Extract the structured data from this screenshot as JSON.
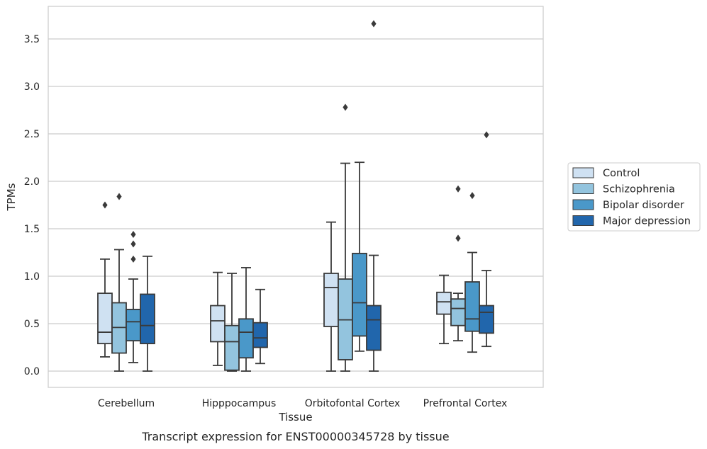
{
  "caption": "Transcript expression for ENST00000345728 by tissue",
  "chart_data": {
    "type": "box",
    "xlabel": "Tissue",
    "ylabel": "TPMs",
    "ylim": [
      -0.18,
      3.86
    ],
    "yticks": [
      0.0,
      0.5,
      1.0,
      1.5,
      2.0,
      2.5,
      3.0,
      3.5
    ],
    "ytick_labels": [
      "0.0",
      "0.5",
      "1.0",
      "1.5",
      "2.0",
      "2.5",
      "3.0",
      "3.5"
    ],
    "grid": "horizontal",
    "legend_position": "right",
    "categories": [
      "Cerebellum",
      "Hipppocampus",
      "Orbitofontal Cortex",
      "Prefrontal Cortex"
    ],
    "series": [
      {
        "name": "Control",
        "color": "#cfe1f2",
        "boxes": [
          {
            "whislo": 0.15,
            "q1": 0.29,
            "med": 0.41,
            "q3": 0.82,
            "whishi": 1.18,
            "fliers": [
              1.75
            ]
          },
          {
            "whislo": 0.06,
            "q1": 0.31,
            "med": 0.53,
            "q3": 0.69,
            "whishi": 1.04,
            "fliers": []
          },
          {
            "whislo": 0.0,
            "q1": 0.47,
            "med": 0.88,
            "q3": 1.03,
            "whishi": 1.57,
            "fliers": []
          },
          {
            "whislo": 0.29,
            "q1": 0.6,
            "med": 0.73,
            "q3": 0.83,
            "whishi": 1.01,
            "fliers": []
          }
        ]
      },
      {
        "name": "Schizophrenia",
        "color": "#93c4de",
        "boxes": [
          {
            "whislo": 0.0,
            "q1": 0.19,
            "med": 0.46,
            "q3": 0.72,
            "whishi": 1.28,
            "fliers": [
              1.84
            ]
          },
          {
            "whislo": 0.0,
            "q1": 0.01,
            "med": 0.31,
            "q3": 0.48,
            "whishi": 1.03,
            "fliers": []
          },
          {
            "whislo": 0.0,
            "q1": 0.12,
            "med": 0.54,
            "q3": 0.97,
            "whishi": 2.19,
            "fliers": [
              2.78
            ]
          },
          {
            "whislo": 0.32,
            "q1": 0.48,
            "med": 0.66,
            "q3": 0.76,
            "whishi": 0.82,
            "fliers": [
              1.4,
              1.92
            ]
          }
        ]
      },
      {
        "name": "Bipolar disorder",
        "color": "#4a98c9",
        "boxes": [
          {
            "whislo": 0.09,
            "q1": 0.32,
            "med": 0.52,
            "q3": 0.65,
            "whishi": 0.97,
            "fliers": [
              1.18,
              1.34,
              1.44
            ]
          },
          {
            "whislo": 0.0,
            "q1": 0.14,
            "med": 0.41,
            "q3": 0.55,
            "whishi": 1.09,
            "fliers": []
          },
          {
            "whislo": 0.21,
            "q1": 0.37,
            "med": 0.72,
            "q3": 1.24,
            "whishi": 2.2,
            "fliers": []
          },
          {
            "whislo": 0.2,
            "q1": 0.42,
            "med": 0.55,
            "q3": 0.94,
            "whishi": 1.25,
            "fliers": [
              1.85
            ]
          }
        ]
      },
      {
        "name": "Major depression",
        "color": "#2166ac",
        "boxes": [
          {
            "whislo": 0.0,
            "q1": 0.29,
            "med": 0.48,
            "q3": 0.81,
            "whishi": 1.21,
            "fliers": []
          },
          {
            "whislo": 0.08,
            "q1": 0.25,
            "med": 0.35,
            "q3": 0.51,
            "whishi": 0.86,
            "fliers": []
          },
          {
            "whislo": 0.0,
            "q1": 0.22,
            "med": 0.54,
            "q3": 0.69,
            "whishi": 1.22,
            "fliers": [
              3.66
            ]
          },
          {
            "whislo": 0.26,
            "q1": 0.4,
            "med": 0.62,
            "q3": 0.69,
            "whishi": 1.06,
            "fliers": [
              2.49
            ]
          }
        ]
      }
    ]
  }
}
